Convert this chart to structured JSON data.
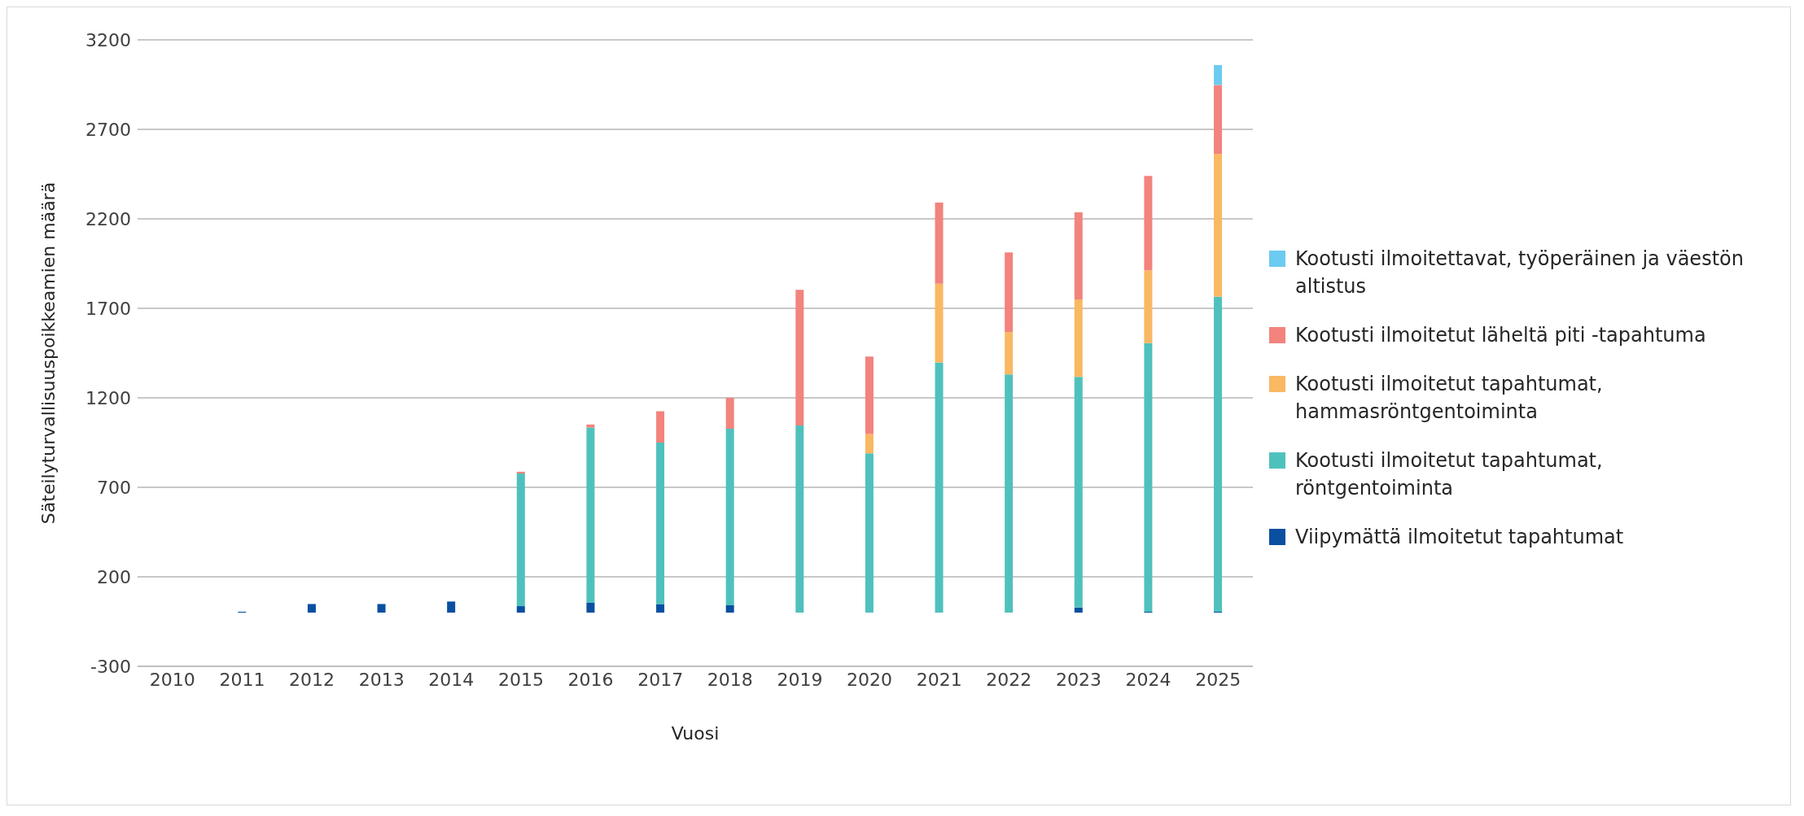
{
  "chart_data": {
    "type": "bar",
    "stacked": true,
    "xlabel": "Vuosi",
    "ylabel": "Säteilyturvallisuuspoikkeamien määrä",
    "categories": [
      "2010",
      "2011",
      "2012",
      "2013",
      "2014",
      "2015",
      "2016",
      "2017",
      "2018",
      "2019",
      "2020",
      "2021",
      "2022",
      "2023",
      "2024",
      "2025"
    ],
    "series": [
      {
        "name": "Viipymättä ilmoitetut tapahtumat",
        "color": "#0a4fa0",
        "values": [
          0,
          5,
          48,
          48,
          62,
          36,
          55,
          48,
          41,
          0,
          0,
          0,
          0,
          29,
          5,
          5
        ]
      },
      {
        "name": "Kootusti ilmoitetut tapahtumat, röntgentoiminta",
        "color": "#4fc1bd",
        "values": [
          0,
          0,
          0,
          0,
          0,
          741,
          979,
          902,
          986,
          1046,
          890,
          1398,
          1331,
          1288,
          1501,
          1760
        ]
      },
      {
        "name": "Kootusti ilmoitetut tapahtumat, hammasröntgentoiminta",
        "color": "#f9b862",
        "values": [
          0,
          0,
          0,
          0,
          0,
          0,
          0,
          0,
          0,
          0,
          108,
          440,
          236,
          433,
          407,
          797
        ]
      },
      {
        "name": "Kootusti ilmoitetut läheltä piti -tapahtuma",
        "color": "#f2837d",
        "values": [
          0,
          0,
          0,
          0,
          0,
          10,
          17,
          175,
          173,
          757,
          433,
          453,
          446,
          486,
          527,
          386
        ]
      },
      {
        "name": "Kootusti ilmoitettavat, työperäinen ja väestön altistus",
        "color": "#6ccbf0",
        "values": [
          0,
          0,
          0,
          0,
          0,
          0,
          0,
          0,
          0,
          0,
          0,
          0,
          0,
          0,
          0,
          111
        ]
      }
    ],
    "ylim": [
      -300,
      3200
    ],
    "yticks": [
      -300,
      200,
      700,
      1200,
      1700,
      2200,
      2700,
      3200
    ],
    "grid": "y",
    "legend": "right"
  }
}
